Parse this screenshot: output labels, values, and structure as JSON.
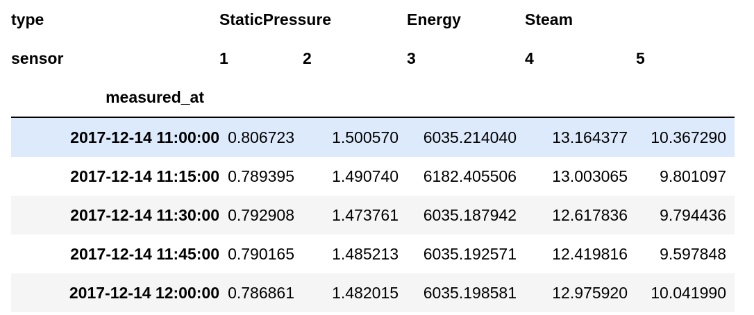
{
  "header": {
    "level0_name": "type",
    "level1_name": "sensor",
    "index_name": "measured_at",
    "types": [
      "StaticPressure",
      "Energy",
      "Steam"
    ],
    "sensors": [
      "1",
      "2",
      "3",
      "4",
      "5"
    ]
  },
  "rows": [
    {
      "index": "2017-12-14 11:00:00",
      "values": [
        "0.806723",
        "1.500570",
        "6035.214040",
        "13.164377",
        "10.367290"
      ]
    },
    {
      "index": "2017-12-14 11:15:00",
      "values": [
        "0.789395",
        "1.490740",
        "6182.405506",
        "13.003065",
        "9.801097"
      ]
    },
    {
      "index": "2017-12-14 11:30:00",
      "values": [
        "0.792908",
        "1.473761",
        "6035.187942",
        "12.617836",
        "9.794436"
      ]
    },
    {
      "index": "2017-12-14 11:45:00",
      "values": [
        "0.790165",
        "1.485213",
        "6035.192571",
        "12.419816",
        "9.597848"
      ]
    },
    {
      "index": "2017-12-14 12:00:00",
      "values": [
        "0.786861",
        "1.482015",
        "6035.198581",
        "12.975920",
        "10.041990"
      ]
    }
  ],
  "highlighted_row": 0,
  "colors": {
    "highlight": "#dceafb",
    "stripe": "#f5f5f5",
    "header_rule": "#000000"
  }
}
